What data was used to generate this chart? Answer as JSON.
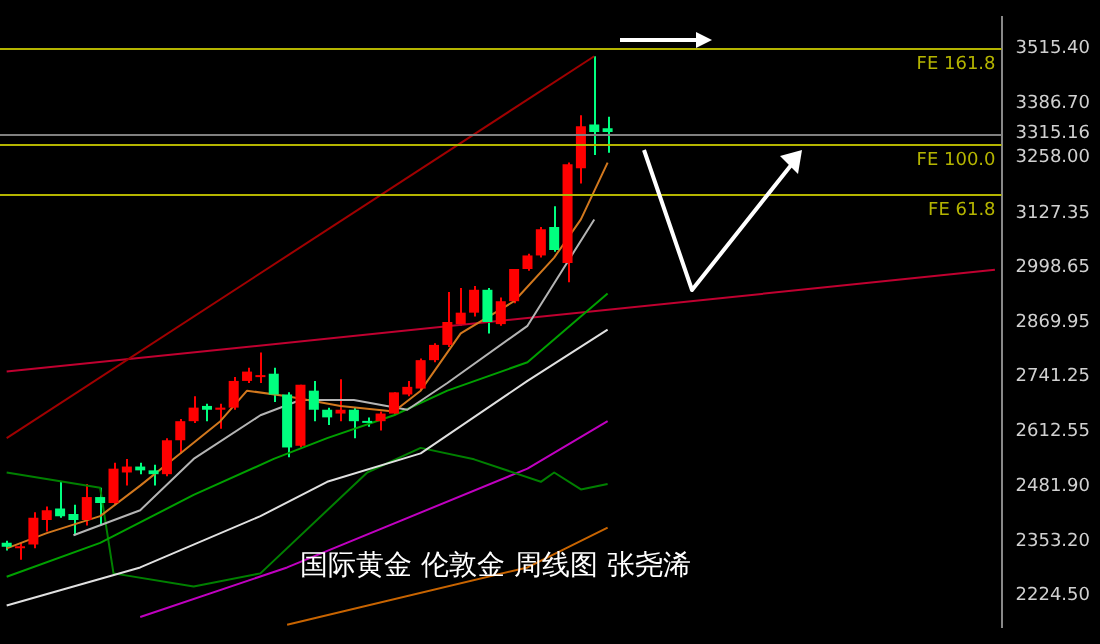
{
  "chart_data": {
    "type": "candlestick",
    "title": "国际黄金 伦敦金 周线图 张尧浠",
    "categories": [
      null,
      null,
      null,
      null,
      null,
      null,
      null,
      null,
      null,
      null,
      null,
      null,
      null,
      null,
      null,
      null,
      null,
      null,
      null,
      null,
      null,
      null,
      null,
      null,
      null,
      null,
      null,
      null,
      null,
      null,
      null,
      null,
      null,
      null,
      null,
      null,
      null,
      null,
      null,
      null,
      null,
      null,
      null,
      null,
      null,
      null,
      null,
      null,
      null,
      null,
      null,
      null,
      null,
      null,
      null,
      null,
      null,
      null,
      null,
      null,
      null,
      null,
      null,
      null,
      null,
      null,
      null,
      null,
      null,
      null,
      null,
      null,
      null,
      null,
      null
    ],
    "ohlc": [
      [
        2349,
        2354,
        2331,
        2340
      ],
      [
        2336,
        2349,
        2309,
        2340
      ],
      [
        2345,
        2421,
        2336,
        2408
      ],
      [
        2403,
        2435,
        2376,
        2426
      ],
      [
        2430,
        2493,
        2408,
        2412
      ],
      [
        2417,
        2439,
        2367,
        2403
      ],
      [
        2403,
        2488,
        2390,
        2457
      ],
      [
        2457,
        2479,
        2390,
        2443
      ],
      [
        2443,
        2538,
        2439,
        2524
      ],
      [
        2515,
        2547,
        2484,
        2529
      ],
      [
        2529,
        2538,
        2511,
        2520
      ],
      [
        2520,
        2533,
        2484,
        2511
      ],
      [
        2511,
        2596,
        2506,
        2591
      ],
      [
        2591,
        2641,
        2560,
        2636
      ],
      [
        2636,
        2695,
        2632,
        2668
      ],
      [
        2672,
        2677,
        2636,
        2663
      ],
      [
        2663,
        2677,
        2618,
        2668
      ],
      [
        2668,
        2740,
        2663,
        2731
      ],
      [
        2731,
        2762,
        2726,
        2753
      ],
      [
        2740,
        2798,
        2726,
        2744
      ],
      [
        2748,
        2762,
        2681,
        2699
      ],
      [
        2699,
        2704,
        2551,
        2574
      ],
      [
        2578,
        2722,
        2574,
        2722
      ],
      [
        2708,
        2731,
        2636,
        2663
      ],
      [
        2663,
        2668,
        2627,
        2645
      ],
      [
        2654,
        2735,
        2636,
        2663
      ],
      [
        2663,
        2668,
        2596,
        2636
      ],
      [
        2636,
        2645,
        2623,
        2632
      ],
      [
        2636,
        2659,
        2614,
        2654
      ],
      [
        2654,
        2704,
        2650,
        2704
      ],
      [
        2699,
        2731,
        2695,
        2717
      ],
      [
        2713,
        2784,
        2708,
        2780
      ],
      [
        2780,
        2820,
        2775,
        2816
      ],
      [
        2816,
        2941,
        2811,
        2870
      ],
      [
        2865,
        2950,
        2861,
        2892
      ],
      [
        2892,
        2955,
        2883,
        2946
      ],
      [
        2946,
        2950,
        2843,
        2870
      ],
      [
        2865,
        2928,
        2861,
        2919
      ],
      [
        2919,
        2995,
        2914,
        2995
      ],
      [
        2995,
        3031,
        2991,
        3027
      ],
      [
        3027,
        3094,
        3022,
        3089
      ],
      [
        3094,
        3143,
        3036,
        3040
      ],
      [
        3009,
        3246,
        2964,
        3242
      ],
      [
        3233,
        3358,
        3197,
        3332
      ],
      [
        3336,
        3497,
        3264,
        3318
      ],
      [
        3327,
        3354,
        3269,
        3318
      ],
      null,
      null,
      null,
      null,
      null,
      null,
      null,
      null,
      null,
      null,
      null,
      null,
      null,
      null,
      null,
      null,
      null,
      null,
      null,
      null,
      null,
      null,
      null,
      null,
      null,
      null,
      null,
      null,
      null
    ],
    "colors": [
      "#00ff7f",
      "#ff0000",
      "#ff0000",
      "#ff0000",
      "#00ff7f",
      "#00ff7f",
      "#ff0000",
      "#00ff7f",
      "#ff0000",
      "#ff0000",
      "#00ff7f",
      "#00ff7f",
      "#ff0000",
      "#ff0000",
      "#ff0000",
      "#00ff7f",
      "#ff0000",
      "#ff0000",
      "#ff0000",
      "#ff0000",
      "#00ff7f",
      "#00ff7f",
      "#ff0000",
      "#00ff7f",
      "#00ff7f",
      "#ff0000",
      "#00ff7f",
      "#00ff7f",
      "#ff0000",
      "#ff0000",
      "#ff0000",
      "#ff0000",
      "#ff0000",
      "#ff0000",
      "#ff0000",
      "#ff0000",
      "#00ff7f",
      "#ff0000",
      "#ff0000",
      "#ff0000",
      "#ff0000",
      "#00ff7f",
      "#ff0000",
      "#ff0000",
      "#00ff7f",
      "#00ff7f",
      null,
      null,
      null,
      null,
      null,
      null,
      null,
      null,
      null,
      null,
      null,
      null,
      null,
      null,
      null,
      null,
      null,
      null,
      null,
      null,
      null,
      null,
      null,
      null,
      null,
      null,
      null,
      null,
      null
    ],
    "series": [
      {
        "type": "line",
        "color": "#d2781e",
        "values": [
          2336,
          null,
          null,
          2372,
          null,
          null,
          null,
          2412,
          null,
          null,
          2484,
          null,
          null,
          2560,
          null,
          null,
          2636,
          null,
          2708,
          null,
          null,
          2695,
          null,
          null,
          null,
          2672,
          null,
          null,
          null,
          2659,
          null,
          2708,
          null,
          null,
          2843,
          null,
          null,
          null,
          2919,
          null,
          null,
          3022,
          null,
          3112,
          null,
          3246,
          null,
          null,
          null,
          null,
          null,
          null,
          null,
          null,
          null,
          null,
          null,
          null,
          null,
          null,
          null,
          null,
          null,
          null,
          null,
          null,
          null,
          null,
          null,
          null,
          null,
          null,
          null,
          null,
          null
        ]
      },
      {
        "type": "line",
        "color": "#b4b4b4",
        "values": [
          null,
          null,
          null,
          null,
          null,
          2367,
          null,
          null,
          null,
          null,
          2426,
          null,
          null,
          null,
          2547,
          null,
          null,
          null,
          null,
          2650,
          null,
          null,
          2686,
          null,
          null,
          null,
          2686,
          null,
          null,
          null,
          2663,
          null,
          null,
          2726,
          null,
          null,
          null,
          null,
          null,
          2861,
          null,
          null,
          null,
          null,
          3112,
          null,
          null,
          null,
          null,
          null,
          null,
          null,
          null,
          null,
          null,
          null,
          null,
          null,
          null,
          null,
          null,
          null,
          null,
          null,
          null,
          null,
          null,
          null,
          null,
          null,
          null,
          null,
          null,
          null,
          null
        ]
      },
      {
        "type": "line",
        "color": "#00a000",
        "values": [
          2269,
          null,
          null,
          null,
          null,
          null,
          null,
          2349,
          null,
          null,
          null,
          null,
          null,
          null,
          2462,
          null,
          null,
          null,
          null,
          null,
          2547,
          null,
          null,
          null,
          2596,
          null,
          null,
          null,
          null,
          2650,
          null,
          null,
          null,
          2708,
          null,
          null,
          null,
          null,
          null,
          2775,
          null,
          null,
          null,
          null,
          null,
          2937,
          null,
          null,
          null,
          null,
          null,
          null,
          null,
          null,
          null,
          null,
          null,
          null,
          null,
          null,
          null,
          null,
          null,
          null,
          null,
          null,
          null,
          null,
          null,
          null,
          null,
          null,
          null,
          null,
          null
        ]
      },
      {
        "type": "line",
        "color": "#e0e0e0",
        "values": [
          2201,
          null,
          null,
          null,
          null,
          null,
          null,
          null,
          null,
          null,
          2291,
          null,
          null,
          null,
          null,
          null,
          null,
          null,
          null,
          2412,
          null,
          null,
          null,
          null,
          2493,
          null,
          null,
          null,
          null,
          null,
          null,
          2560,
          null,
          null,
          null,
          null,
          null,
          null,
          null,
          2731,
          null,
          null,
          null,
          null,
          null,
          2852,
          null,
          null,
          null,
          null,
          null,
          null,
          null,
          null,
          null,
          null,
          null,
          null,
          null,
          null,
          null,
          null,
          null,
          null,
          null,
          null,
          null,
          null,
          null,
          null,
          null,
          null,
          null,
          null,
          null
        ]
      },
      {
        "type": "line",
        "color": "#008000",
        "values": [
          2515,
          null,
          null,
          null,
          null,
          null,
          null,
          2479,
          2277,
          null,
          null,
          null,
          null,
          null,
          2246,
          null,
          null,
          null,
          null,
          2277,
          null,
          null,
          null,
          null,
          null,
          null,
          null,
          2515,
          null,
          null,
          null,
          2573,
          null,
          null,
          null,
          2546,
          null,
          null,
          null,
          null,
          2493,
          2515,
          null,
          2475,
          null,
          2488,
          null,
          null,
          null,
          null,
          null,
          null,
          null,
          null,
          null,
          null,
          null,
          null,
          null,
          null,
          null,
          null,
          null,
          null,
          null,
          null,
          null,
          null,
          null,
          null,
          null,
          null,
          null,
          null,
          null
        ]
      },
      {
        "type": "line",
        "color": "#c000c0",
        "values": [
          null,
          null,
          null,
          null,
          null,
          null,
          null,
          null,
          null,
          null,
          2174,
          null,
          null,
          null,
          null,
          null,
          null,
          null,
          null,
          null,
          null,
          2291,
          null,
          null,
          null,
          null,
          null,
          null,
          null,
          null,
          null,
          null,
          null,
          null,
          null,
          null,
          null,
          null,
          null,
          2524,
          null,
          null,
          null,
          null,
          null,
          2636,
          null,
          null,
          null,
          null,
          null,
          null,
          null,
          null,
          null,
          null,
          null,
          null,
          null,
          null,
          null,
          null,
          null,
          null,
          null,
          null,
          null,
          null,
          null,
          null,
          null,
          null,
          null,
          null,
          null
        ]
      },
      {
        "type": "line",
        "color": "#c86400",
        "values": [
          null,
          null,
          null,
          null,
          null,
          null,
          null,
          null,
          null,
          null,
          null,
          null,
          null,
          null,
          null,
          null,
          null,
          null,
          null,
          null,
          null,
          2156,
          null,
          null,
          null,
          null,
          null,
          null,
          null,
          null,
          null,
          null,
          null,
          null,
          null,
          null,
          null,
          null,
          null,
          2291,
          null,
          null,
          null,
          null,
          null,
          2385,
          null,
          null,
          null,
          null,
          null,
          null,
          null,
          null,
          null,
          null,
          null,
          null,
          null,
          null,
          null,
          null,
          null,
          null,
          null,
          null,
          null,
          null,
          null,
          null,
          null,
          null,
          null,
          null,
          null
        ]
      },
      {
        "type": "line",
        "color": "#a00000",
        "values": [
          2596,
          null,
          null,
          null,
          null,
          null,
          null,
          null,
          null,
          null,
          null,
          null,
          null,
          null,
          null,
          null,
          null,
          null,
          null,
          null,
          null,
          null,
          null,
          null,
          null,
          null,
          null,
          null,
          null,
          null,
          null,
          null,
          null,
          null,
          null,
          null,
          null,
          null,
          null,
          null,
          null,
          null,
          null,
          null,
          3497,
          null,
          null,
          null,
          null,
          null,
          null,
          null,
          null,
          null,
          null,
          null,
          null,
          null,
          null,
          null,
          null,
          null,
          null,
          null,
          null,
          null,
          null,
          null,
          null,
          null,
          null,
          null,
          null,
          null,
          null
        ]
      },
      {
        "type": "line",
        "color": "#c00030",
        "values": [
          2753,
          null,
          null,
          null,
          null,
          null,
          null,
          null,
          null,
          null,
          null,
          null,
          null,
          null,
          null,
          null,
          null,
          null,
          null,
          null,
          null,
          null,
          null,
          null,
          null,
          null,
          null,
          null,
          null,
          null,
          null,
          null,
          null,
          null,
          null,
          null,
          null,
          null,
          null,
          null,
          null,
          null,
          null,
          null,
          null,
          null,
          null,
          null,
          null,
          null,
          null,
          null,
          null,
          null,
          null,
          null,
          null,
          null,
          null,
          null,
          null,
          null,
          null,
          null,
          null,
          null,
          null,
          null,
          null,
          null,
          null,
          null,
          null,
          null,
          2993
        ]
      }
    ],
    "ylim": [
      2150,
      3590
    ],
    "yticks": [
      {
        "value": 3515.4,
        "label": "3515.40"
      },
      {
        "value": 3386.7,
        "label": "3386.70"
      },
      {
        "value": 3315.16,
        "label": "3315.16"
      },
      {
        "value": 3258,
        "label": "3258.00"
      },
      {
        "value": 3127.35,
        "label": "3127.35"
      },
      {
        "value": 2998.65,
        "label": "2998.65"
      },
      {
        "value": 2869.95,
        "label": "2869.95"
      },
      {
        "value": 2741.25,
        "label": "2741.25"
      },
      {
        "value": 2612.55,
        "label": "2612.55"
      },
      {
        "value": 2481.9,
        "label": "2481.90"
      },
      {
        "value": 2353.2,
        "label": "2353.20"
      },
      {
        "value": 2224.5,
        "label": "2224.50"
      }
    ],
    "ref_lines": [
      {
        "axis": "y",
        "value": 3515.4,
        "label": "FE 161.8",
        "color": "#b4b400"
      },
      {
        "axis": "y",
        "value": 3289,
        "label": "FE 100.0",
        "color": "#b4b400"
      },
      {
        "axis": "y",
        "value": 3170,
        "label": "FE 61.8",
        "color": "#b4b400"
      },
      {
        "axis": "y",
        "value": 3315.16,
        "color": "#808080"
      }
    ],
    "tick_labels": "y"
  }
}
